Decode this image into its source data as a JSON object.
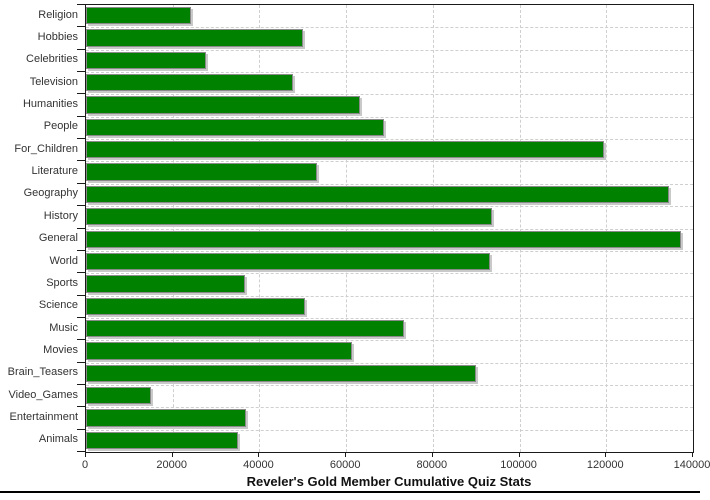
{
  "chart_data": {
    "type": "bar",
    "orientation": "horizontal",
    "title": "Reveler's Gold Member Cumulative Quiz Stats",
    "categories": [
      "Religion",
      "Hobbies",
      "Celebrities",
      "Television",
      "Humanities",
      "People",
      "For_Children",
      "Literature",
      "Geography",
      "History",
      "General",
      "World",
      "Sports",
      "Science",
      "Music",
      "Movies",
      "Brain_Teasers",
      "Video_Games",
      "Entertainment",
      "Animals"
    ],
    "values": [
      24200,
      50100,
      27700,
      47800,
      63300,
      68800,
      119500,
      53300,
      134500,
      93600,
      137200,
      93200,
      36700,
      50600,
      73400,
      61300,
      90000,
      15000,
      37000,
      35000
    ],
    "xlabel": "",
    "ylabel": "",
    "xlim": [
      0,
      140000
    ],
    "x_ticks": [
      0,
      20000,
      40000,
      60000,
      80000,
      100000,
      120000,
      140000
    ],
    "x_tick_labels": [
      "0",
      "20000",
      "40000",
      "60000",
      "80000",
      "100000",
      "120000",
      "140000"
    ],
    "grid": "dashed light-gray, vertical at ticks and horizontal at category boundaries",
    "legend": "none",
    "colors": {
      "bar_fill": "#008200",
      "bar_outline": "#8a8a8a",
      "bar_shadow": "#c9c9c9",
      "gridline": "#cfcfcf",
      "plot_border": "#1a1a1a",
      "text": "#333333",
      "background": "#ffffff"
    }
  }
}
